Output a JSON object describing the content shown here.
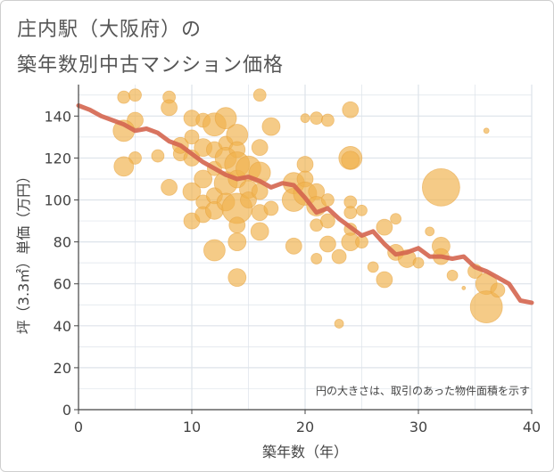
{
  "header": {
    "title_line1": "庄内駅（大阪府）の",
    "title_line2": "築年数別中古マンション価格"
  },
  "colors": {
    "bubble_fill": "#f0b24e",
    "bubble_stroke": "#e5a13a",
    "line": "#d4654f",
    "grid": "#dde3ea",
    "axis": "#444444"
  },
  "chart_data": {
    "type": "scatter",
    "title": "庄内駅（大阪府）の築年数別中古マンション価格",
    "xlabel": "築年数（年）",
    "ylabel": "坪（3.3㎡）単価（万円）",
    "xlim": [
      0,
      40
    ],
    "ylim": [
      0,
      155
    ],
    "xticks": [
      0,
      10,
      20,
      30,
      40
    ],
    "yticks": [
      0,
      20,
      40,
      60,
      80,
      100,
      120,
      140
    ],
    "grid": true,
    "note": "円の大きさは、取引のあった物件面積を示す",
    "bubbles": [
      {
        "x": 4,
        "y": 149,
        "r": 7
      },
      {
        "x": 5,
        "y": 150,
        "r": 7
      },
      {
        "x": 5,
        "y": 138,
        "r": 9
      },
      {
        "x": 4,
        "y": 133,
        "r": 12
      },
      {
        "x": 5,
        "y": 120,
        "r": 7
      },
      {
        "x": 4,
        "y": 116,
        "r": 11
      },
      {
        "x": 7,
        "y": 121,
        "r": 7
      },
      {
        "x": 8,
        "y": 149,
        "r": 7
      },
      {
        "x": 8,
        "y": 144,
        "r": 9
      },
      {
        "x": 8,
        "y": 106,
        "r": 9
      },
      {
        "x": 9,
        "y": 122,
        "r": 8
      },
      {
        "x": 9,
        "y": 126,
        "r": 9
      },
      {
        "x": 10,
        "y": 139,
        "r": 9
      },
      {
        "x": 10,
        "y": 130,
        "r": 8
      },
      {
        "x": 10,
        "y": 120,
        "r": 9
      },
      {
        "x": 10,
        "y": 104,
        "r": 10
      },
      {
        "x": 10,
        "y": 90,
        "r": 9
      },
      {
        "x": 11,
        "y": 138,
        "r": 8
      },
      {
        "x": 11,
        "y": 125,
        "r": 10
      },
      {
        "x": 11,
        "y": 110,
        "r": 10
      },
      {
        "x": 11,
        "y": 99,
        "r": 8
      },
      {
        "x": 11,
        "y": 93,
        "r": 9
      },
      {
        "x": 12,
        "y": 136,
        "r": 13
      },
      {
        "x": 12,
        "y": 124,
        "r": 9
      },
      {
        "x": 12,
        "y": 115,
        "r": 8
      },
      {
        "x": 12,
        "y": 102,
        "r": 9
      },
      {
        "x": 12,
        "y": 95,
        "r": 10
      },
      {
        "x": 12,
        "y": 76,
        "r": 12
      },
      {
        "x": 13,
        "y": 139,
        "r": 12
      },
      {
        "x": 13,
        "y": 127,
        "r": 8
      },
      {
        "x": 13,
        "y": 120,
        "r": 12
      },
      {
        "x": 13,
        "y": 108,
        "r": 13
      },
      {
        "x": 13,
        "y": 99,
        "r": 10
      },
      {
        "x": 14,
        "y": 131,
        "r": 12
      },
      {
        "x": 14,
        "y": 124,
        "r": 9
      },
      {
        "x": 14,
        "y": 117,
        "r": 14
      },
      {
        "x": 14,
        "y": 110,
        "r": 10
      },
      {
        "x": 14,
        "y": 96,
        "r": 17
      },
      {
        "x": 14,
        "y": 88,
        "r": 9
      },
      {
        "x": 14,
        "y": 80,
        "r": 10
      },
      {
        "x": 14,
        "y": 63,
        "r": 10
      },
      {
        "x": 15,
        "y": 115,
        "r": 14
      },
      {
        "x": 15,
        "y": 105,
        "r": 10
      },
      {
        "x": 15,
        "y": 100,
        "r": 9
      },
      {
        "x": 16,
        "y": 150,
        "r": 7
      },
      {
        "x": 16,
        "y": 125,
        "r": 9
      },
      {
        "x": 16,
        "y": 113,
        "r": 12
      },
      {
        "x": 16,
        "y": 104,
        "r": 9
      },
      {
        "x": 16,
        "y": 94,
        "r": 9
      },
      {
        "x": 16,
        "y": 85,
        "r": 10
      },
      {
        "x": 17,
        "y": 135,
        "r": 10
      },
      {
        "x": 17,
        "y": 96,
        "r": 8
      },
      {
        "x": 19,
        "y": 108,
        "r": 12
      },
      {
        "x": 19,
        "y": 100,
        "r": 13
      },
      {
        "x": 19,
        "y": 78,
        "r": 9
      },
      {
        "x": 20,
        "y": 139,
        "r": 5
      },
      {
        "x": 20,
        "y": 117,
        "r": 9
      },
      {
        "x": 20,
        "y": 110,
        "r": 9
      },
      {
        "x": 20,
        "y": 103,
        "r": 13
      },
      {
        "x": 21,
        "y": 139,
        "r": 7
      },
      {
        "x": 21,
        "y": 104,
        "r": 9
      },
      {
        "x": 21,
        "y": 97,
        "r": 11
      },
      {
        "x": 21,
        "y": 88,
        "r": 7
      },
      {
        "x": 21,
        "y": 72,
        "r": 6
      },
      {
        "x": 22,
        "y": 138,
        "r": 7
      },
      {
        "x": 22,
        "y": 100,
        "r": 7
      },
      {
        "x": 22,
        "y": 90,
        "r": 8
      },
      {
        "x": 22,
        "y": 79,
        "r": 9
      },
      {
        "x": 23,
        "y": 73,
        "r": 8
      },
      {
        "x": 23,
        "y": 41,
        "r": 5
      },
      {
        "x": 24,
        "y": 143,
        "r": 9
      },
      {
        "x": 24,
        "y": 120,
        "r": 13
      },
      {
        "x": 24,
        "y": 119,
        "r": 10
      },
      {
        "x": 24,
        "y": 99,
        "r": 7
      },
      {
        "x": 24,
        "y": 94,
        "r": 7
      },
      {
        "x": 24,
        "y": 86,
        "r": 7
      },
      {
        "x": 24,
        "y": 80,
        "r": 10
      },
      {
        "x": 25,
        "y": 95,
        "r": 6
      },
      {
        "x": 25,
        "y": 80,
        "r": 7
      },
      {
        "x": 26,
        "y": 68,
        "r": 6
      },
      {
        "x": 27,
        "y": 87,
        "r": 9
      },
      {
        "x": 27,
        "y": 62,
        "r": 9
      },
      {
        "x": 28,
        "y": 91,
        "r": 6
      },
      {
        "x": 28,
        "y": 75,
        "r": 9
      },
      {
        "x": 29,
        "y": 72,
        "r": 10
      },
      {
        "x": 30,
        "y": 70,
        "r": 6
      },
      {
        "x": 31,
        "y": 85,
        "r": 5
      },
      {
        "x": 32,
        "y": 106,
        "r": 21
      },
      {
        "x": 32,
        "y": 78,
        "r": 10
      },
      {
        "x": 32,
        "y": 73,
        "r": 9
      },
      {
        "x": 33,
        "y": 64,
        "r": 6
      },
      {
        "x": 34,
        "y": 58,
        "r": 2
      },
      {
        "x": 35,
        "y": 66,
        "r": 8
      },
      {
        "x": 36,
        "y": 133,
        "r": 3
      },
      {
        "x": 36,
        "y": 60,
        "r": 12
      },
      {
        "x": 36,
        "y": 49,
        "r": 18
      },
      {
        "x": 37,
        "y": 57,
        "r": 8
      }
    ],
    "series": [
      {
        "x": [
          0,
          1,
          2,
          3,
          4,
          5,
          6,
          7,
          8,
          9,
          10,
          11,
          12,
          13,
          14,
          15,
          16,
          17,
          18,
          19,
          20,
          21,
          22,
          23,
          24,
          25,
          26,
          27,
          28,
          29,
          30,
          31,
          32,
          33,
          34,
          35,
          36,
          37,
          38,
          39,
          40
        ],
        "values": [
          145,
          143,
          140,
          138,
          136,
          133,
          134,
          132,
          128,
          126,
          122,
          118,
          115,
          112,
          110,
          111,
          109,
          106,
          108,
          107,
          101,
          94,
          96,
          91,
          87,
          83,
          85,
          79,
          74,
          75,
          77,
          73,
          73,
          72,
          73,
          68,
          66,
          63,
          60,
          52,
          51
        ]
      }
    ]
  }
}
